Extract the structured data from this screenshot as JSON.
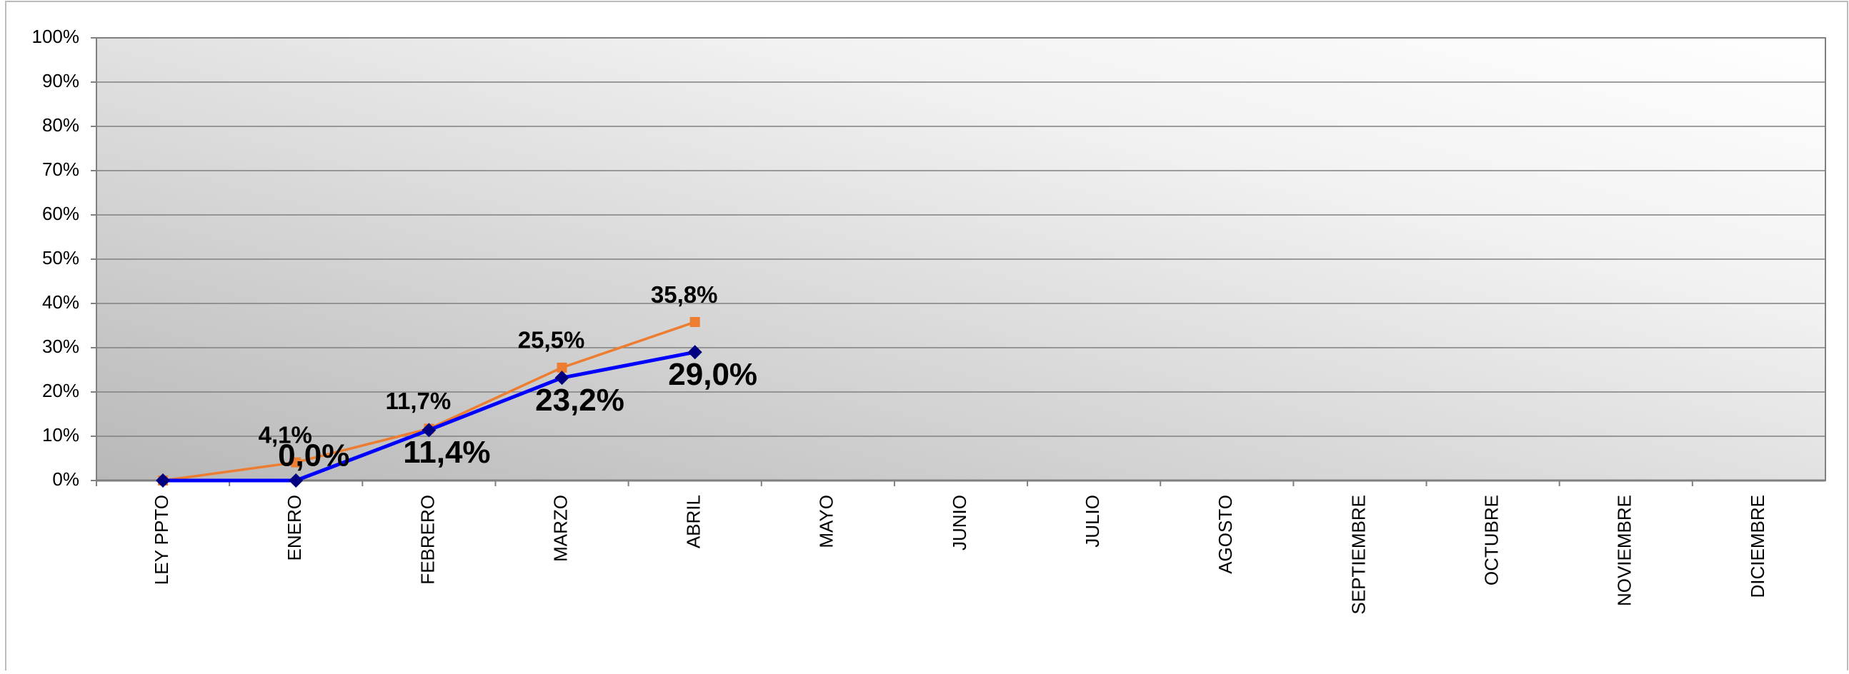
{
  "chart_data": {
    "type": "line",
    "categories": [
      "LEY PPTO",
      "ENERO",
      "FEBRERO",
      "MARZO",
      "ABRIL",
      "MAYO",
      "JUNIO",
      "JULIO",
      "AGOSTO",
      "SEPTIEMBRE",
      "OCTUBRE",
      "NOVIEMBRE",
      "DICIEMBRE"
    ],
    "series": [
      {
        "color": "#ed7d31",
        "marker": "square",
        "values": [
          0,
          4.1,
          11.7,
          25.5,
          35.8,
          null,
          null,
          null,
          null,
          null,
          null,
          null,
          null
        ],
        "value_labels": [
          null,
          "4,1%",
          "11,7%",
          "25,5%",
          "35,8%",
          null,
          null,
          null,
          null,
          null,
          null,
          null,
          null
        ],
        "label_color": "#000000"
      },
      {
        "color": "#0000ff",
        "marker": "diamond",
        "values": [
          0,
          0,
          11.4,
          23.2,
          29.0,
          null,
          null,
          null,
          null,
          null,
          null,
          null,
          null
        ],
        "value_labels": [
          null,
          "0,0%",
          "11,4%",
          "23,2%",
          "29,0%",
          null,
          null,
          null,
          null,
          null,
          null,
          null,
          null
        ],
        "label_color": "#ff0000"
      }
    ],
    "ylim": [
      0,
      100
    ],
    "yticks": [
      {
        "value": 0,
        "label": "0%"
      },
      {
        "value": 10,
        "label": "10%"
      },
      {
        "value": 20,
        "label": "20%"
      },
      {
        "value": 30,
        "label": "30%"
      },
      {
        "value": 40,
        "label": "40%"
      },
      {
        "value": 50,
        "label": "50%"
      },
      {
        "value": 60,
        "label": "60%"
      },
      {
        "value": 70,
        "label": "70%"
      },
      {
        "value": 80,
        "label": "80%"
      },
      {
        "value": 90,
        "label": "90%"
      },
      {
        "value": 100,
        "label": "100%"
      }
    ],
    "grid": true
  }
}
